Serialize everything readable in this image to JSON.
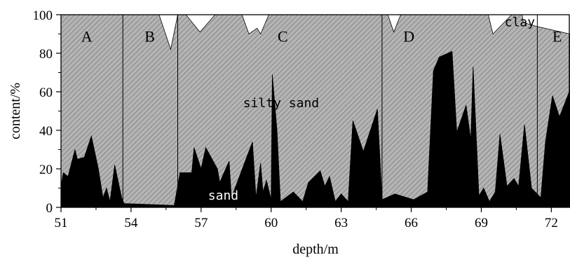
{
  "chart_data": {
    "type": "area",
    "xlabel": "depth/m",
    "ylabel": "content/%",
    "xlim": [
      51,
      72.8
    ],
    "ylim": [
      0,
      100
    ],
    "xticks": [
      51,
      54,
      57,
      60,
      63,
      66,
      69,
      72
    ],
    "yticks": [
      0,
      20,
      40,
      60,
      80,
      100
    ],
    "stacking": "cumulative",
    "series": [
      {
        "name": "sand",
        "color": "#000000",
        "points": [
          [
            51.0,
            11
          ],
          [
            51.1,
            18
          ],
          [
            51.3,
            16
          ],
          [
            51.6,
            30
          ],
          [
            51.7,
            25
          ],
          [
            52.0,
            26
          ],
          [
            52.3,
            37
          ],
          [
            52.6,
            20
          ],
          [
            52.8,
            5
          ],
          [
            52.95,
            10
          ],
          [
            53.1,
            3
          ],
          [
            53.3,
            22
          ],
          [
            53.6,
            5
          ],
          [
            53.7,
            2
          ],
          [
            55.85,
            1
          ],
          [
            56.1,
            18
          ],
          [
            56.6,
            18
          ],
          [
            56.7,
            31
          ],
          [
            57.0,
            20
          ],
          [
            57.2,
            31
          ],
          [
            57.7,
            20
          ],
          [
            57.8,
            13
          ],
          [
            58.2,
            24
          ],
          [
            58.3,
            5
          ],
          [
            59.2,
            34
          ],
          [
            59.35,
            5
          ],
          [
            59.55,
            23
          ],
          [
            59.65,
            8
          ],
          [
            59.8,
            14
          ],
          [
            60.0,
            4
          ],
          [
            60.05,
            69
          ],
          [
            60.25,
            40
          ],
          [
            60.4,
            3
          ],
          [
            60.95,
            8
          ],
          [
            61.35,
            3
          ],
          [
            61.6,
            13
          ],
          [
            62.1,
            19
          ],
          [
            62.3,
            11
          ],
          [
            62.5,
            16
          ],
          [
            62.75,
            3
          ],
          [
            63.0,
            7
          ],
          [
            63.3,
            3
          ],
          [
            63.5,
            45
          ],
          [
            63.95,
            29
          ],
          [
            64.55,
            51
          ],
          [
            64.75,
            4
          ],
          [
            65.3,
            7
          ],
          [
            66.1,
            4
          ],
          [
            66.7,
            8
          ],
          [
            66.95,
            71
          ],
          [
            67.2,
            78
          ],
          [
            67.75,
            81
          ],
          [
            67.95,
            39
          ],
          [
            68.35,
            53
          ],
          [
            68.55,
            35
          ],
          [
            68.65,
            73
          ],
          [
            68.9,
            6
          ],
          [
            69.1,
            10
          ],
          [
            69.35,
            3
          ],
          [
            69.6,
            8
          ],
          [
            69.8,
            38
          ],
          [
            70.1,
            11
          ],
          [
            70.4,
            15
          ],
          [
            70.6,
            11
          ],
          [
            70.85,
            43
          ],
          [
            71.15,
            10
          ],
          [
            71.55,
            5
          ],
          [
            71.75,
            34
          ],
          [
            72.05,
            58
          ],
          [
            72.35,
            47
          ],
          [
            72.8,
            61
          ]
        ]
      },
      {
        "name": "silty sand",
        "color": "#b0b0b0",
        "upper_boundary": [
          [
            51.0,
            100
          ],
          [
            55.2,
            100
          ],
          [
            55.7,
            82
          ],
          [
            56.0,
            100
          ],
          [
            56.35,
            100
          ],
          [
            56.95,
            91
          ],
          [
            57.6,
            100
          ],
          [
            58.75,
            100
          ],
          [
            59.05,
            90
          ],
          [
            59.4,
            93
          ],
          [
            59.55,
            90
          ],
          [
            59.9,
            100
          ],
          [
            65.0,
            100
          ],
          [
            65.25,
            91
          ],
          [
            65.55,
            100
          ],
          [
            69.3,
            100
          ],
          [
            69.5,
            90
          ],
          [
            70.3,
            100
          ],
          [
            70.75,
            100
          ],
          [
            70.8,
            96
          ],
          [
            71.35,
            94
          ],
          [
            72.8,
            90
          ]
        ]
      },
      {
        "name": "clay",
        "color": "#ffffff"
      }
    ],
    "zone_boundaries": [
      53.65,
      56.0,
      64.75,
      71.4
    ],
    "zones": [
      {
        "label": "A",
        "x": 52.1
      },
      {
        "label": "B",
        "x": 54.8
      },
      {
        "label": "C",
        "x": 60.5
      },
      {
        "label": "D",
        "x": 65.9
      },
      {
        "label": "E",
        "x": 72.25
      }
    ],
    "layer_labels": [
      {
        "text": "silty sand",
        "x": 58.8,
        "y": 52
      },
      {
        "text": "sand",
        "x": 57.3,
        "y": 4
      },
      {
        "text": "clay",
        "x": 70.0,
        "y": 94
      }
    ]
  }
}
